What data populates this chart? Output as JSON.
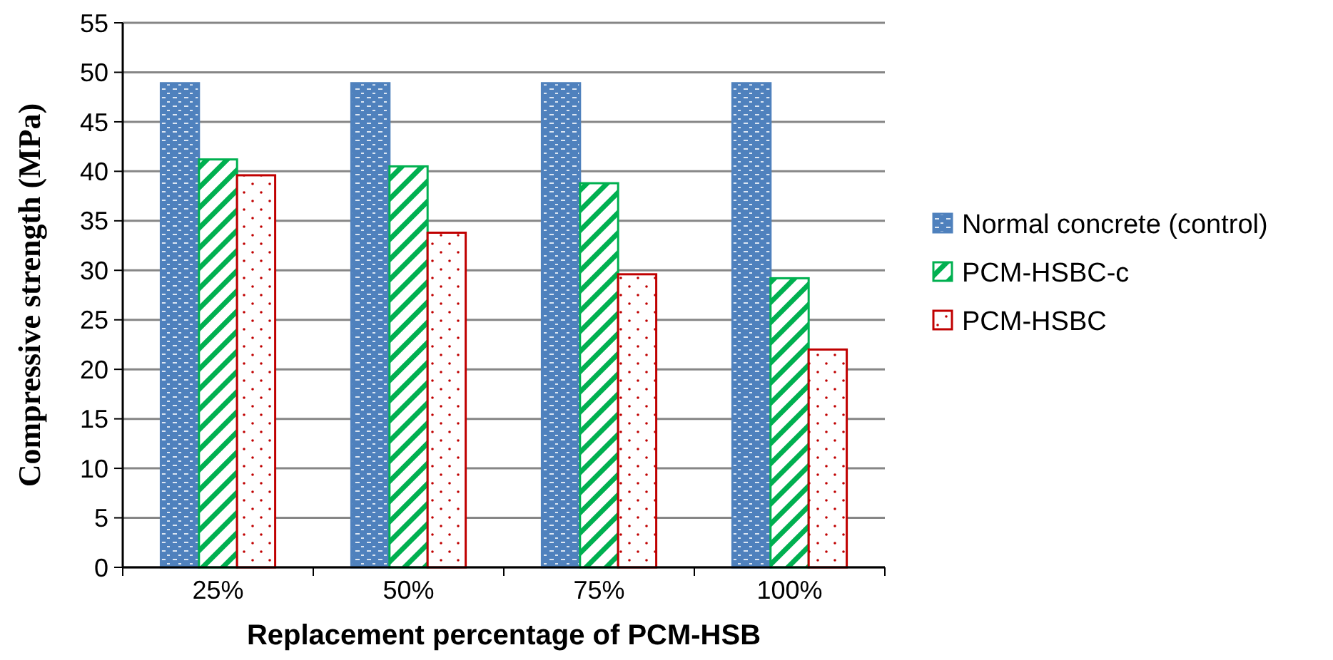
{
  "chart_data": {
    "type": "bar",
    "xlabel": "Replacement percentage of PCM-HSB",
    "ylabel": "Compressive strength (MPa)",
    "categories": [
      "25%",
      "50%",
      "75%",
      "100%"
    ],
    "series": [
      {
        "name": "Normal concrete (control)",
        "color": "#4f81bd",
        "values": [
          48.9,
          48.9,
          48.9,
          48.9
        ]
      },
      {
        "name": "PCM-HSBC-c",
        "color": "#00b050",
        "values": [
          41.2,
          40.5,
          38.8,
          29.2
        ]
      },
      {
        "name": "PCM-HSBC",
        "color": "#c00000",
        "values": [
          39.6,
          33.8,
          29.6,
          22
        ]
      }
    ],
    "ylim": [
      0,
      55
    ],
    "yticks": [
      0,
      5,
      10,
      15,
      20,
      25,
      30,
      35,
      40,
      45,
      50,
      55
    ],
    "grid": "y",
    "legend": "right"
  }
}
